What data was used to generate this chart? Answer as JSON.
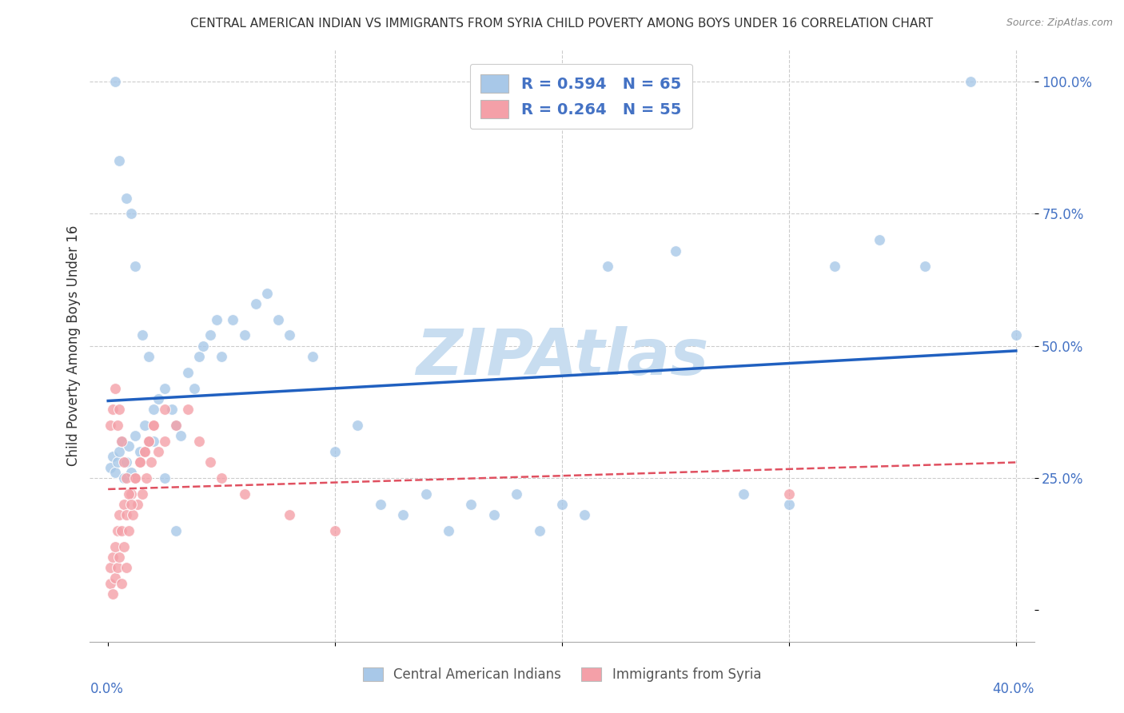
{
  "title": "CENTRAL AMERICAN INDIAN VS IMMIGRANTS FROM SYRIA CHILD POVERTY AMONG BOYS UNDER 16 CORRELATION CHART",
  "source": "Source: ZipAtlas.com",
  "ylabel": "Child Poverty Among Boys Under 16",
  "legend_labels": [
    "Central American Indians",
    "Immigrants from Syria"
  ],
  "R_blue": 0.594,
  "N_blue": 65,
  "R_pink": 0.264,
  "N_pink": 55,
  "blue_color": "#a8c8e8",
  "pink_color": "#f4a0a8",
  "blue_line_color": "#2060c0",
  "pink_line_color": "#e05060",
  "watermark": "ZIPAtlas",
  "watermark_color": "#c8ddf0",
  "blue_scatter_x": [
    0.001,
    0.002,
    0.003,
    0.004,
    0.005,
    0.006,
    0.007,
    0.008,
    0.009,
    0.01,
    0.012,
    0.014,
    0.016,
    0.018,
    0.02,
    0.022,
    0.025,
    0.028,
    0.03,
    0.032,
    0.035,
    0.038,
    0.04,
    0.042,
    0.045,
    0.048,
    0.05,
    0.055,
    0.06,
    0.065,
    0.07,
    0.075,
    0.08,
    0.09,
    0.1,
    0.11,
    0.12,
    0.13,
    0.14,
    0.15,
    0.16,
    0.17,
    0.18,
    0.19,
    0.2,
    0.21,
    0.22,
    0.25,
    0.28,
    0.3,
    0.003,
    0.005,
    0.008,
    0.01,
    0.012,
    0.015,
    0.018,
    0.02,
    0.025,
    0.03,
    0.32,
    0.34,
    0.36,
    0.38,
    0.4
  ],
  "blue_scatter_y": [
    0.27,
    0.29,
    0.26,
    0.28,
    0.3,
    0.32,
    0.25,
    0.28,
    0.31,
    0.26,
    0.33,
    0.3,
    0.35,
    0.32,
    0.38,
    0.4,
    0.42,
    0.38,
    0.35,
    0.33,
    0.45,
    0.42,
    0.48,
    0.5,
    0.52,
    0.55,
    0.48,
    0.55,
    0.52,
    0.58,
    0.6,
    0.55,
    0.52,
    0.48,
    0.3,
    0.35,
    0.2,
    0.18,
    0.22,
    0.15,
    0.2,
    0.18,
    0.22,
    0.15,
    0.2,
    0.18,
    0.65,
    0.68,
    0.22,
    0.2,
    1.0,
    0.85,
    0.78,
    0.75,
    0.65,
    0.52,
    0.48,
    0.32,
    0.25,
    0.15,
    0.65,
    0.7,
    0.65,
    1.0,
    0.52
  ],
  "pink_scatter_x": [
    0.001,
    0.001,
    0.002,
    0.002,
    0.003,
    0.003,
    0.004,
    0.004,
    0.005,
    0.005,
    0.006,
    0.006,
    0.007,
    0.007,
    0.008,
    0.008,
    0.009,
    0.01,
    0.011,
    0.012,
    0.013,
    0.014,
    0.015,
    0.016,
    0.017,
    0.018,
    0.019,
    0.02,
    0.022,
    0.025,
    0.001,
    0.002,
    0.003,
    0.004,
    0.005,
    0.006,
    0.007,
    0.008,
    0.009,
    0.01,
    0.012,
    0.014,
    0.016,
    0.018,
    0.02,
    0.025,
    0.03,
    0.035,
    0.04,
    0.045,
    0.05,
    0.06,
    0.08,
    0.1,
    0.3
  ],
  "pink_scatter_y": [
    0.05,
    0.08,
    0.03,
    0.1,
    0.06,
    0.12,
    0.08,
    0.15,
    0.1,
    0.18,
    0.05,
    0.15,
    0.12,
    0.2,
    0.08,
    0.18,
    0.15,
    0.22,
    0.18,
    0.25,
    0.2,
    0.28,
    0.22,
    0.3,
    0.25,
    0.32,
    0.28,
    0.35,
    0.3,
    0.32,
    0.35,
    0.38,
    0.42,
    0.35,
    0.38,
    0.32,
    0.28,
    0.25,
    0.22,
    0.2,
    0.25,
    0.28,
    0.3,
    0.32,
    0.35,
    0.38,
    0.35,
    0.38,
    0.32,
    0.28,
    0.25,
    0.22,
    0.18,
    0.15,
    0.22
  ]
}
